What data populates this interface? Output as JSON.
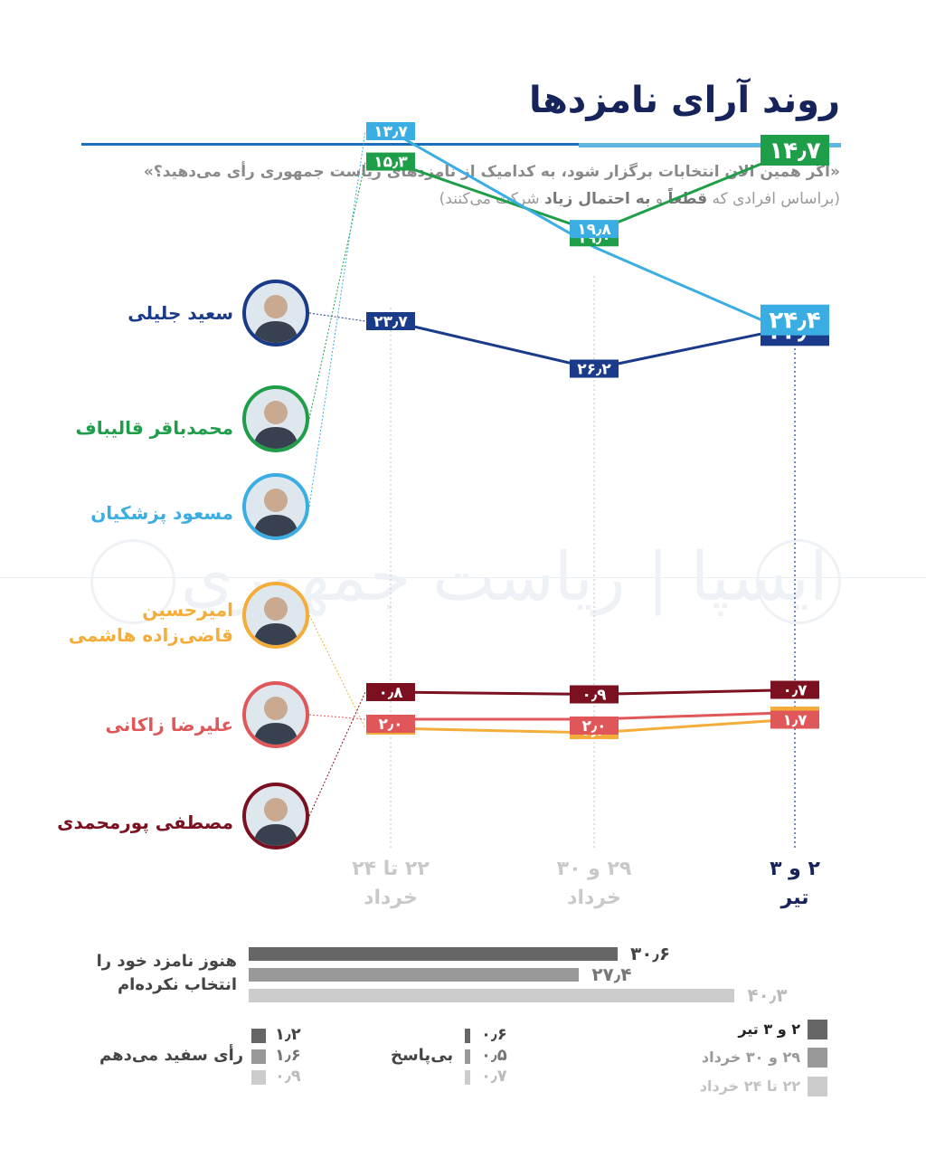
{
  "title": "روند آرای نامزدها",
  "question": "«اگر همین الان انتخابات برگزار شود، به کدامیک از نامزدهای ریاست جمهوری رأی می‌دهید؟»",
  "subtitle_parts": {
    "a": "(براساس افرادی که ",
    "b": "قطعاً",
    "c": " و ",
    "d": "به احتمال زیاد",
    "e": " شرکت می‌کنند)"
  },
  "watermark": "ایسپا | ریاست جمهوری",
  "chart_data": {
    "type": "line",
    "x": [
      "۲۲ تا ۲۴ خرداد",
      "۲۹ و ۳۰ خرداد",
      "۲ و ۳ تیر"
    ],
    "x_lines": [
      [
        "۲۲ تا ۲۴",
        "خرداد"
      ],
      [
        "۲۹ و ۳۰",
        "خرداد"
      ],
      [
        "۲ و ۳",
        "تیر"
      ]
    ],
    "ylim": [
      0,
      30
    ],
    "series": [
      {
        "name": "سعید جلیلی",
        "color": "#1a3a8a",
        "values": [
          23.7,
          26.2,
          24.0
        ],
        "labels": [
          "۲۳٫۷",
          "۲۶٫۲",
          "۲۴٫۰"
        ]
      },
      {
        "name": "محمدباقر قالیباف",
        "color": "#1e9e48",
        "values": [
          15.3,
          19.0,
          14.7
        ],
        "labels": [
          "۱۵٫۳",
          "۱۹٫۰",
          "۱۴٫۷"
        ]
      },
      {
        "name": "مسعود پزشکیان",
        "color": "#3aaee3",
        "values": [
          13.7,
          19.8,
          24.4
        ],
        "labels": [
          "۱۳٫۷",
          "۱۹٫۸",
          "۲۴٫۴"
        ]
      },
      {
        "name": "امیرحسین قاضی‌زاده هاشمی",
        "color": "#f4ad3a",
        "values": [
          2.4,
          2.6,
          2.0
        ],
        "labels": [
          "۲٫۴",
          "۲٫۶",
          "۲٫۰"
        ]
      },
      {
        "name": "علیرضا زاکانی",
        "color": "#e0575a",
        "values": [
          2.0,
          2.0,
          1.7
        ],
        "labels": [
          "۲٫۰",
          "۲٫۰",
          "۱٫۷"
        ]
      },
      {
        "name": "مصطفی پورمحمدی",
        "color": "#7a1020",
        "values": [
          0.8,
          0.9,
          0.7
        ],
        "labels": [
          "۰٫۸",
          "۰٫۹",
          "۰٫۷"
        ]
      }
    ]
  },
  "candidates": [
    {
      "name_lines": [
        "سعید جلیلی"
      ],
      "color": "#1a3a8a"
    },
    {
      "name_lines": [
        "محمدباقر قالیباف"
      ],
      "color": "#1e9e48"
    },
    {
      "name_lines": [
        "مسعود پزشکیان"
      ],
      "color": "#3aaee3"
    },
    {
      "name_lines": [
        "امیرحسین",
        "قاضی‌زاده هاشمی"
      ],
      "color": "#f4ad3a"
    },
    {
      "name_lines": [
        "علیرضا زاکانی"
      ],
      "color": "#e0575a"
    },
    {
      "name_lines": [
        "مصطفی پورمحمدی"
      ],
      "color": "#7a1020"
    }
  ],
  "undecided": {
    "label_lines": [
      "هنوز نامزد خود را",
      "انتخاب نکرده‌ام"
    ],
    "values": [
      30.6,
      27.4,
      40.3
    ],
    "labels": [
      "۳۰٫۶",
      "۲۷٫۴",
      "۴۰٫۳"
    ],
    "colors": [
      "#666666",
      "#999999",
      "#cccccc"
    ]
  },
  "blank_vote": {
    "label": "رأی سفید می‌دهم",
    "values": [
      1.2,
      1.6,
      0.9
    ],
    "labels": [
      "۱٫۲",
      "۱٫۶",
      "۰٫۹"
    ]
  },
  "no_answer": {
    "label": "بی‌پاسخ",
    "values": [
      0.6,
      0.5,
      0.7
    ],
    "labels": [
      "۰٫۶",
      "۰٫۵",
      "۰٫۷"
    ]
  },
  "legend": [
    {
      "label": "۲ و ۳ تیر",
      "color": "#666666"
    },
    {
      "label": "۲۹ و ۳۰ خرداد",
      "color": "#999999"
    },
    {
      "label": "۲۲ تا ۲۴ خرداد",
      "color": "#cccccc"
    }
  ]
}
